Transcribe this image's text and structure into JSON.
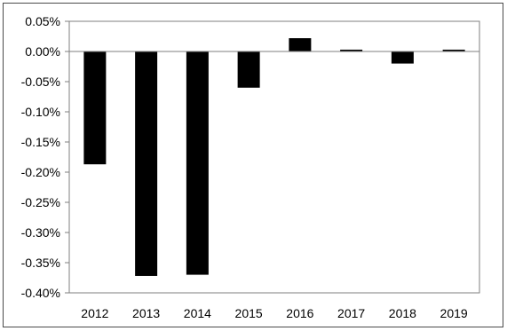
{
  "chart_data": {
    "type": "bar",
    "title": "",
    "xlabel": "",
    "ylabel": "",
    "categories": [
      "2012",
      "2013",
      "2014",
      "2015",
      "2016",
      "2017",
      "2018",
      "2019"
    ],
    "values": [
      -0.187,
      -0.372,
      -0.37,
      -0.06,
      0.022,
      0.003,
      -0.02,
      0.003
    ],
    "value_unit": "%",
    "ylim": [
      -0.4,
      0.05
    ],
    "yticks": [
      0.05,
      0.0,
      -0.05,
      -0.1,
      -0.15,
      -0.2,
      -0.25,
      -0.3,
      -0.35,
      -0.4
    ],
    "ytick_labels": [
      "0.05%",
      "0.00%",
      "-0.05%",
      "-0.10%",
      "-0.15%",
      "-0.20%",
      "-0.25%",
      "-0.30%",
      "-0.35%",
      "-0.40%"
    ],
    "grid": false,
    "legend": "none",
    "bar_color": "#000000",
    "axis_color": "#7f7f7f"
  }
}
